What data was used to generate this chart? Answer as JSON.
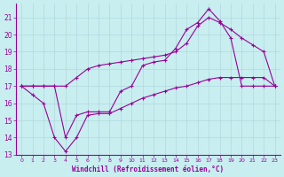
{
  "xlabel": "Windchill (Refroidissement éolien,°C)",
  "bg_color": "#c8eef0",
  "grid_color": "#b0d8dc",
  "line_color": "#990099",
  "xlim": [
    -0.5,
    23.5
  ],
  "ylim": [
    13,
    21.8
  ],
  "yticks": [
    13,
    14,
    15,
    16,
    17,
    18,
    19,
    20,
    21
  ],
  "xticks": [
    0,
    1,
    2,
    3,
    4,
    5,
    6,
    7,
    8,
    9,
    10,
    11,
    12,
    13,
    14,
    15,
    16,
    17,
    18,
    19,
    20,
    21,
    22,
    23
  ],
  "series": [
    {
      "x": [
        0,
        1,
        2,
        3,
        4,
        5,
        6,
        7,
        8,
        9,
        10,
        11,
        12,
        13,
        14,
        15,
        16,
        17,
        18,
        19,
        20,
        21,
        22,
        23
      ],
      "y": [
        17,
        17,
        17,
        17,
        17,
        17.5,
        18.0,
        18.2,
        18.3,
        18.4,
        18.5,
        18.6,
        18.7,
        18.8,
        19.0,
        19.5,
        20.5,
        21.0,
        20.7,
        20.3,
        19.8,
        19.4,
        19.0,
        17.0
      ]
    },
    {
      "x": [
        0,
        1,
        2,
        3,
        4,
        5,
        6,
        7,
        8,
        9,
        10,
        11,
        12,
        13,
        14,
        15,
        16,
        17,
        18,
        19,
        20,
        21,
        22,
        23
      ],
      "y": [
        17,
        17,
        17,
        17,
        14,
        15.3,
        15.5,
        15.5,
        15.5,
        16.7,
        17.0,
        18.2,
        18.4,
        18.5,
        19.2,
        20.3,
        20.7,
        21.5,
        20.8,
        19.8,
        17.0,
        17.0,
        17.0,
        17.0
      ]
    },
    {
      "x": [
        0,
        1,
        2,
        3,
        4,
        5,
        6,
        7,
        8,
        9,
        10,
        11,
        12,
        13,
        14,
        15,
        16,
        17,
        18,
        19,
        20,
        21,
        22,
        23
      ],
      "y": [
        17,
        16.5,
        16.0,
        14.0,
        13.2,
        14.0,
        15.3,
        15.4,
        15.4,
        15.7,
        16.0,
        16.3,
        16.5,
        16.7,
        16.9,
        17.0,
        17.2,
        17.4,
        17.5,
        17.5,
        17.5,
        17.5,
        17.5,
        17.0
      ]
    }
  ]
}
